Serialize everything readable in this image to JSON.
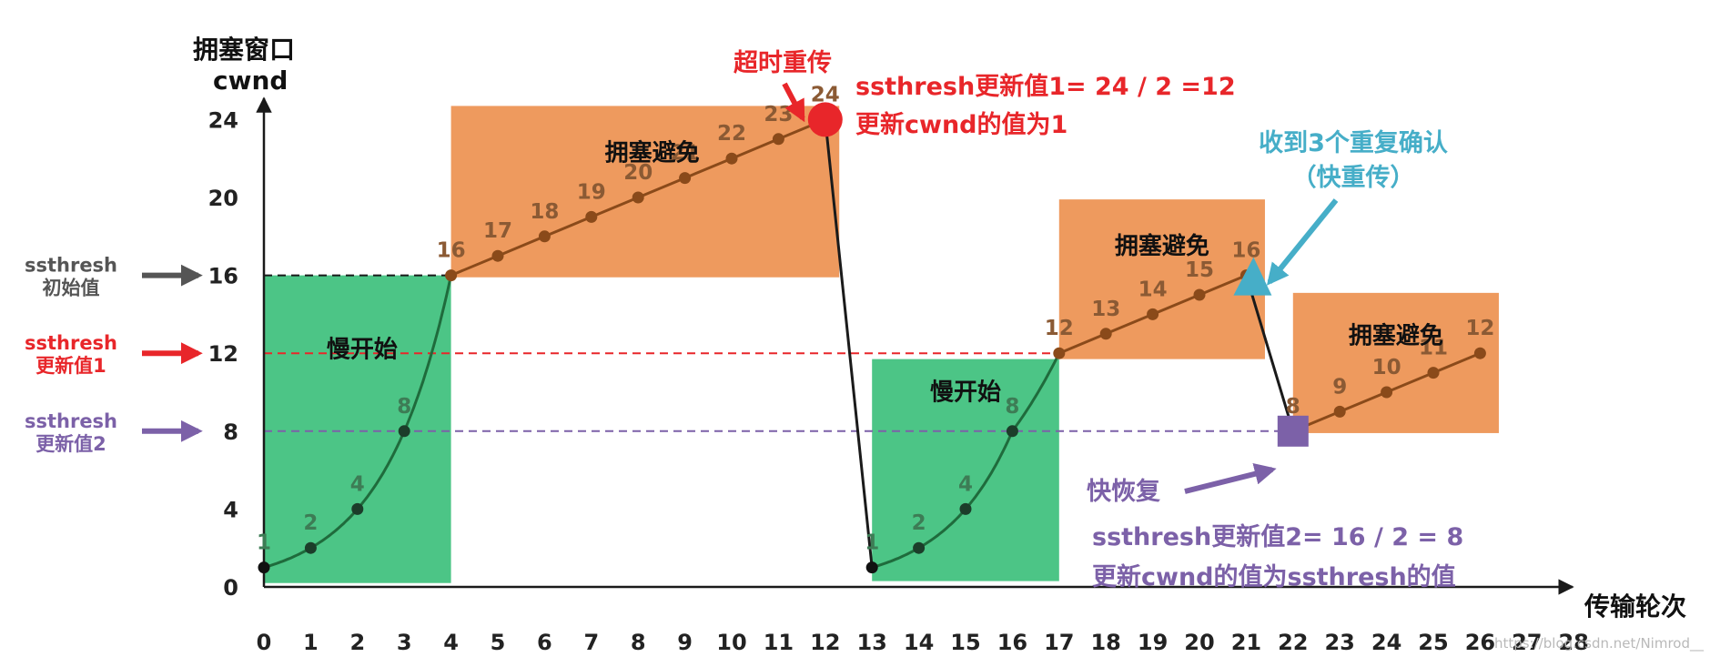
{
  "colors": {
    "slow_start": "#4cc586",
    "avoid": "#ee9a5e",
    "curve_in_avoid": "#8a4a1a",
    "curve_in_slow": "#1f6b3c",
    "black_line": "#1a1a1a",
    "red": "#e8262a",
    "purple": "#7c61a8",
    "teal": "#46aec8",
    "gray": "#555555",
    "avoid_label": "#8b5a34",
    "slow_label": "#3d7c55"
  },
  "chart_data": {
    "type": "line",
    "xlabel": "传输轮次",
    "ylabel_line1": "拥塞窗口",
    "ylabel_line2": "cwnd",
    "x_ticks": [
      "0",
      "1",
      "2",
      "3",
      "4",
      "5",
      "6",
      "7",
      "8",
      "9",
      "10",
      "11",
      "12",
      "13",
      "14",
      "15",
      "16",
      "17",
      "18",
      "19",
      "20",
      "21",
      "22",
      "23",
      "24",
      "25",
      "26",
      "27",
      "28"
    ],
    "y_ticks": [
      "0",
      "4",
      "8",
      "12",
      "16",
      "20",
      "24"
    ],
    "xlim": [
      0,
      28
    ],
    "ylim": [
      0,
      24
    ],
    "series": [
      {
        "x": [
          0,
          1,
          2,
          3,
          4,
          5,
          6,
          7,
          8,
          9,
          10,
          11,
          12,
          13,
          14,
          15,
          16,
          17,
          18,
          19,
          20,
          21,
          22,
          23,
          24,
          25,
          26
        ],
        "values": [
          1,
          2,
          4,
          8,
          16,
          17,
          18,
          19,
          20,
          21,
          22,
          23,
          24,
          1,
          2,
          4,
          8,
          12,
          13,
          14,
          15,
          16,
          8,
          9,
          10,
          11,
          12
        ]
      }
    ],
    "point_labels": [
      "1",
      "2",
      "4",
      "8",
      "16",
      "17",
      "18",
      "19",
      "20",
      "21",
      "22",
      "23",
      "24",
      "1",
      "2",
      "4",
      "8",
      "12",
      "13",
      "14",
      "15",
      "16",
      "8",
      "9",
      "10",
      "11",
      "12"
    ],
    "regions": [
      {
        "kind": "slow",
        "label": "慢开始",
        "x0": 0,
        "x1": 4,
        "y0": 0.2,
        "y1": 16
      },
      {
        "kind": "avoid",
        "label": "拥塞避免",
        "x0": 4,
        "x1": 12.3,
        "y0": 15.9,
        "y1": 24.7
      },
      {
        "kind": "slow",
        "label": "慢开始",
        "x0": 13,
        "x1": 17,
        "y0": 0.3,
        "y1": 11.7
      },
      {
        "kind": "avoid",
        "label": "拥塞避免",
        "x0": 17,
        "x1": 21.4,
        "y0": 11.7,
        "y1": 19.9
      },
      {
        "kind": "avoid",
        "label": "拥塞避免",
        "x0": 22,
        "x1": 26.4,
        "y0": 7.9,
        "y1": 15.1
      }
    ],
    "threshold_lines": [
      {
        "y": 16,
        "x0": 0,
        "x1": 4,
        "color_key": "black_line",
        "label_line1": "ssthresh",
        "label_line2": "初始值",
        "label_color_key": "gray"
      },
      {
        "y": 12,
        "x0": 0,
        "x1": 17,
        "color_key": "red",
        "label_line1": "ssthresh",
        "label_line2": "更新值1",
        "label_color_key": "red"
      },
      {
        "y": 8,
        "x0": 0,
        "x1": 22,
        "color_key": "purple",
        "label_line1": "ssthresh",
        "label_line2": "更新值2",
        "label_color_key": "purple"
      }
    ],
    "events": [
      {
        "name": "timeout",
        "label": "超时重传",
        "x": 12,
        "y": 24,
        "marker": "circle",
        "color_key": "red"
      },
      {
        "name": "dup-ack",
        "label_line1": "收到3个重复确认",
        "label_line2": "（快重传）",
        "x": 21,
        "y": 16,
        "marker": "triangle",
        "color_key": "teal"
      },
      {
        "name": "fast-recovery",
        "label": "快恢复",
        "x": 22,
        "y": 8,
        "marker": "square",
        "color_key": "purple"
      }
    ],
    "notes": {
      "timeout_line1": "ssthresh更新值1= 24 / 2 =12",
      "timeout_line2": "更新cwnd的值为1",
      "recovery_line1": "ssthresh更新值2= 16 / 2 = 8",
      "recovery_line2": "更新cwnd的值为ssthresh的值"
    }
  },
  "watermark": "https://blog.csdn.net/Nimrod__"
}
